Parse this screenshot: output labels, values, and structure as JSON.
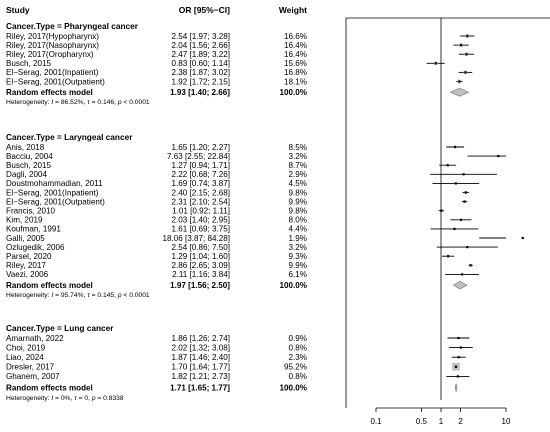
{
  "headers": {
    "study": "Study",
    "or": "OR [95%−CI]",
    "weight": "Weight"
  },
  "chart_data": {
    "type": "forest",
    "x_scale": "log",
    "xlim": [
      0.1,
      10
    ],
    "x_ticks": [
      0.1,
      0.5,
      1,
      2,
      10
    ],
    "x_tick_labels": [
      "0.1",
      "0.5",
      "1",
      "2",
      "10"
    ],
    "reference_line": 1,
    "groups": [
      {
        "title": "Cancer.Type = Pharyngeal cancer",
        "studies": [
          {
            "study": "Riley, 2017(Hypopharynx)",
            "or": 2.54,
            "lo": 1.97,
            "hi": 3.28,
            "ci_text": "2.54 [1.97; 3.28]",
            "weight": "16.6%"
          },
          {
            "study": "Riley, 2017(Nasopharynx)",
            "or": 2.04,
            "lo": 1.56,
            "hi": 2.66,
            "ci_text": "2.04 [1.56; 2.66]",
            "weight": "16.4%"
          },
          {
            "study": "Riley, 2017(Oropharynx)",
            "or": 2.47,
            "lo": 1.89,
            "hi": 3.22,
            "ci_text": "2.47 [1.89; 3.22]",
            "weight": "16.4%"
          },
          {
            "study": "Busch, 2015",
            "or": 0.83,
            "lo": 0.6,
            "hi": 1.14,
            "ci_text": "0.83 [0.60; 1.14]",
            "weight": "15.6%"
          },
          {
            "study": "El−Serag, 2001(Inpatient)",
            "or": 2.38,
            "lo": 1.87,
            "hi": 3.02,
            "ci_text": "2.38 [1.87; 3.02]",
            "weight": "16.8%"
          },
          {
            "study": "El−Serag, 2001(Outpatient)",
            "or": 1.92,
            "lo": 1.72,
            "hi": 2.15,
            "ci_text": "1.92 [1.72; 2.15]",
            "weight": "18.1%"
          }
        ],
        "pooled": {
          "label": "Random effects model",
          "or": 1.93,
          "lo": 1.4,
          "hi": 2.66,
          "ci_text": "1.93 [1.40; 2.66]",
          "weight": "100.0%"
        },
        "het_prefix": "Heterogeneity: ",
        "het_i2": "I",
        "het_i2_value": " = 86.52%, ",
        "het_tau": "τ",
        "het_tau_value": " = 0.146, ",
        "het_p": "p",
        "het_p_value": " < 0.0001"
      },
      {
        "title": "Cancer.Type = Laryngeal cancer",
        "studies": [
          {
            "study": "Anis, 2018",
            "or": 1.65,
            "lo": 1.2,
            "hi": 2.27,
            "ci_text": "1.65 [1.20; 2.27]",
            "weight": "8.5%"
          },
          {
            "study": "Bacciu, 2004",
            "or": 7.63,
            "lo": 2.55,
            "hi": 22.84,
            "ci_text": "7.63 [2.55; 22.84]",
            "weight": "3.2%"
          },
          {
            "study": "Busch, 2015",
            "or": 1.27,
            "lo": 0.94,
            "hi": 1.71,
            "ci_text": "1.27 [0.94; 1.71]",
            "weight": "8.7%"
          },
          {
            "study": "Dagli, 2004",
            "or": 2.22,
            "lo": 0.68,
            "hi": 7.26,
            "ci_text": "2.22 [0.68; 7.26]",
            "weight": "2.9%"
          },
          {
            "study": "Doustmohammadian, 2011",
            "or": 1.69,
            "lo": 0.74,
            "hi": 3.87,
            "ci_text": "1.69 [0.74; 3.87]",
            "weight": "4.5%"
          },
          {
            "study": "El−Serag, 2001(Inpatient)",
            "or": 2.4,
            "lo": 2.15,
            "hi": 2.68,
            "ci_text": "2.40 [2.15; 2.68]",
            "weight": "9.8%"
          },
          {
            "study": "El−Serag, 2001(Outpatient)",
            "or": 2.31,
            "lo": 2.1,
            "hi": 2.54,
            "ci_text": "2.31 [2.10; 2.54]",
            "weight": "9.9%"
          },
          {
            "study": "Francis, 2010",
            "or": 1.01,
            "lo": 0.92,
            "hi": 1.11,
            "ci_text": "1.01 [0.92; 1.11]",
            "weight": "9.8%"
          },
          {
            "study": "Kim, 2019",
            "or": 2.03,
            "lo": 1.4,
            "hi": 2.95,
            "ci_text": "2.03 [1.40; 2.95]",
            "weight": "8.0%"
          },
          {
            "study": "Koufman, 1991",
            "or": 1.61,
            "lo": 0.69,
            "hi": 3.75,
            "ci_text": "1.61 [0.69; 3.75]",
            "weight": "4.4%"
          },
          {
            "study": "Galli, 2005",
            "or": 18.06,
            "lo": 3.87,
            "hi": 84.28,
            "ci_text": "18.06 [3.87; 84.28]",
            "weight": "1.9%"
          },
          {
            "study": "Ozlugedik, 2006",
            "or": 2.54,
            "lo": 0.86,
            "hi": 7.5,
            "ci_text": "2.54 [0.86; 7.50]",
            "weight": "3.2%"
          },
          {
            "study": "Parsel, 2020",
            "or": 1.29,
            "lo": 1.04,
            "hi": 1.6,
            "ci_text": "1.29 [1.04; 1.60]",
            "weight": "9.3%"
          },
          {
            "study": "Riley, 2017",
            "or": 2.86,
            "lo": 2.65,
            "hi": 3.09,
            "ci_text": "2.86 [2.65; 3.09]",
            "weight": "9.9%"
          },
          {
            "study": "Vaezi, 2006",
            "or": 2.11,
            "lo": 1.16,
            "hi": 3.84,
            "ci_text": "2.11 [1.16; 3.84]",
            "weight": "6.1%"
          }
        ],
        "pooled": {
          "label": "Random effects model",
          "or": 1.97,
          "lo": 1.56,
          "hi": 2.5,
          "ci_text": "1.97 [1.56; 2.50]",
          "weight": "100.0%"
        },
        "het_prefix": "Heterogeneity: ",
        "het_i2": "I",
        "het_i2_value": " = 95.74%, ",
        "het_tau": "τ",
        "het_tau_value": " = 0.145, ",
        "het_p": "p",
        "het_p_value": " < 0.0001"
      },
      {
        "title": "Cancer.Type = Lung cancer",
        "studies": [
          {
            "study": "Amarnath, 2022",
            "or": 1.86,
            "lo": 1.26,
            "hi": 2.74,
            "ci_text": "1.86 [1.26; 2.74]",
            "weight": "0.9%"
          },
          {
            "study": "Choi, 2019",
            "or": 2.02,
            "lo": 1.32,
            "hi": 3.08,
            "ci_text": "2.02 [1.32; 3.08]",
            "weight": "0.8%"
          },
          {
            "study": "Liao, 2024",
            "or": 1.87,
            "lo": 1.46,
            "hi": 2.4,
            "ci_text": "1.87 [1.46; 2.40]",
            "weight": "2.3%"
          },
          {
            "study": "Dresler, 2017",
            "or": 1.7,
            "lo": 1.64,
            "hi": 1.77,
            "ci_text": "1.70 [1.64; 1.77]",
            "weight": "95.2%"
          },
          {
            "study": "Ghanem, 2007",
            "or": 1.82,
            "lo": 1.21,
            "hi": 2.73,
            "ci_text": "1.82 [1.21; 2.73]",
            "weight": "0.8%"
          }
        ],
        "pooled": {
          "label": "Random effects model",
          "or": 1.71,
          "lo": 1.65,
          "hi": 1.77,
          "ci_text": "1.71 [1.65; 1.77]",
          "weight": "100.0%"
        },
        "het_prefix": "Heterogeneity: ",
        "het_i2": "I",
        "het_i2_value": " = 0%, ",
        "het_tau": "τ",
        "het_tau_value": " = 0, ",
        "het_p": "p",
        "het_p_value": " = 0.8338"
      }
    ]
  },
  "colors": {
    "pooled_fill": "#bfbfbf",
    "pooled_stroke": "#7f7f7f",
    "weight_box": "#bfbfbf",
    "text": "#000000"
  }
}
